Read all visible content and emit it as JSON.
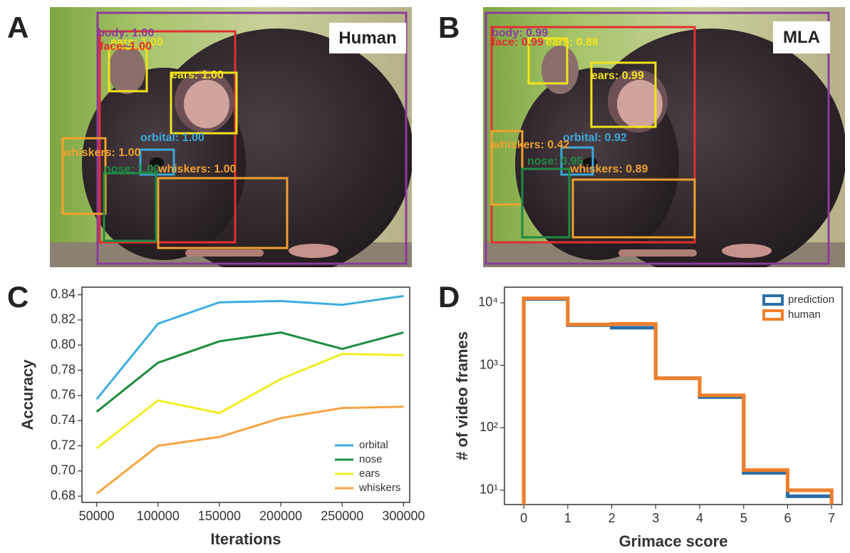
{
  "images": [
    {
      "letter": "A",
      "tag": "Human",
      "boxes": [
        {
          "label": "body: 1.00",
          "color": "#8a3c9a"
        },
        {
          "label": "ears: 1.00",
          "color": "#f2e31b"
        },
        {
          "label": "face: 1.00",
          "color": "#e03030"
        },
        {
          "label": "ears: 1.00",
          "color": "#f2e31b"
        },
        {
          "label": "orbital: 1.00",
          "color": "#3aa9dc"
        },
        {
          "label": "whiskers: 1.00",
          "color": "#f0a030"
        },
        {
          "label": "nose: 1.00",
          "color": "#1f8a45"
        },
        {
          "label": "whiskers: 1.00",
          "color": "#f0a030"
        }
      ]
    },
    {
      "letter": "B",
      "tag": "MLA",
      "boxes": [
        {
          "label": "body: 0.99",
          "color": "#8a3c9a"
        },
        {
          "label": "ears: 0.88",
          "color": "#f2e31b"
        },
        {
          "label": "face: 0.99",
          "color": "#e03030"
        },
        {
          "label": "ears: 0.99",
          "color": "#f2e31b"
        },
        {
          "label": "orbital: 0.92",
          "color": "#3aa9dc"
        },
        {
          "label": "whiskers: 0.42",
          "color": "#f0a030"
        },
        {
          "label": "nose: 0.95",
          "color": "#1f8a45"
        },
        {
          "label": "whiskers: 0.89",
          "color": "#f0a030"
        }
      ]
    }
  ],
  "chart_data": [
    {
      "letter": "C",
      "type": "line",
      "x_label": "Iterations",
      "y_label": "Accuracy",
      "x": [
        50000,
        100000,
        150000,
        200000,
        250000,
        300000
      ],
      "series": [
        {
          "name": "orbital",
          "color": "#3daee0",
          "values": [
            0.757,
            0.817,
            0.834,
            0.835,
            0.832,
            0.839
          ]
        },
        {
          "name": "nose",
          "color": "#1e8c3e",
          "values": [
            0.747,
            0.786,
            0.803,
            0.81,
            0.797,
            0.81
          ]
        },
        {
          "name": "ears",
          "color": "#f3ec22",
          "values": [
            0.718,
            0.756,
            0.746,
            0.773,
            0.793,
            0.792
          ]
        },
        {
          "name": "whiskers",
          "color": "#f5a442",
          "values": [
            0.682,
            0.72,
            0.727,
            0.742,
            0.75,
            0.751
          ]
        }
      ],
      "xlim": [
        38000,
        305000
      ],
      "ylim": [
        0.675,
        0.846
      ],
      "xticks": [
        50000,
        100000,
        150000,
        200000,
        250000,
        300000
      ],
      "yticks": [
        0.68,
        {
          "value": 0.7,
          "label": "0.70"
        },
        0.72,
        0.74,
        0.76,
        0.78,
        {
          "value": 0.8,
          "label": "0.80"
        },
        0.82,
        0.84
      ],
      "legend": "lower right"
    },
    {
      "letter": "D",
      "type": "histogram",
      "x_label": "Grimace score",
      "y_label": "# of video frames",
      "bins": [
        0,
        1,
        2,
        3,
        4,
        5,
        6,
        7
      ],
      "series": [
        {
          "name": "prediction",
          "color": "#2c6fa6",
          "values": [
            11500,
            4400,
            4000,
            620,
            310,
            19,
            8
          ]
        },
        {
          "name": "human",
          "color": "#f07f2a",
          "values": [
            11800,
            4500,
            4600,
            620,
            330,
            21,
            10
          ]
        }
      ],
      "xlim": [
        -0.44,
        7.24
      ],
      "ylim": [
        5.9,
        17800
      ],
      "log_y": true,
      "xticks": [
        0,
        1,
        2,
        3,
        4,
        5,
        6,
        7
      ],
      "yticks": [
        {
          "value": 10,
          "label": "10¹"
        },
        {
          "value": 100,
          "label": "10²"
        },
        {
          "value": 1000,
          "label": "10³"
        },
        {
          "value": 10000,
          "label": "10⁴"
        }
      ],
      "legend": "upper right"
    }
  ]
}
